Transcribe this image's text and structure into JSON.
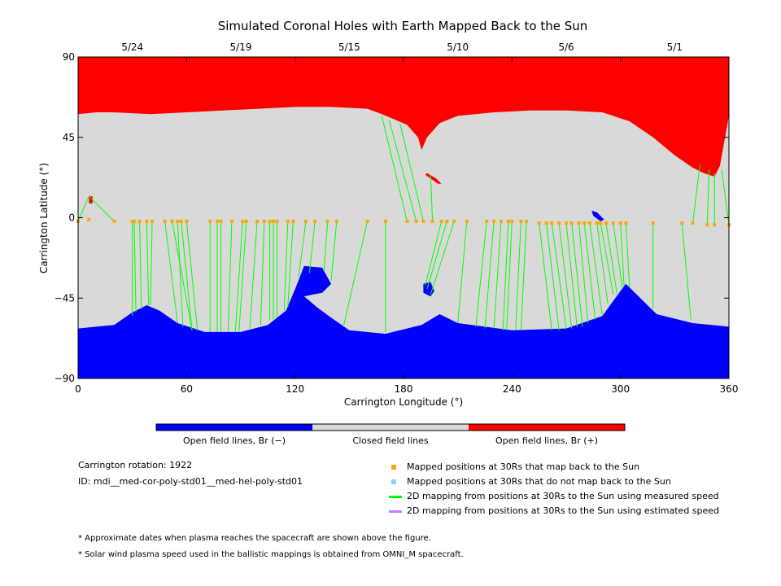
{
  "chart_data": {
    "type": "map",
    "title": "Simulated Coronal Holes with Earth Mapped Back to the Sun",
    "xlabel": "Carrington Longitude (°)",
    "ylabel": "Carrington Latitude (°)",
    "xlim": [
      0,
      360
    ],
    "ylim": [
      -90,
      90
    ],
    "x_ticks": [
      "0",
      "60",
      "120",
      "180",
      "240",
      "300",
      "360"
    ],
    "y_ticks": [
      "90",
      "45",
      "0",
      "-45",
      "-90"
    ],
    "top_dates": [
      {
        "label": "5/24",
        "lon": 30
      },
      {
        "label": "5/19",
        "lon": 90
      },
      {
        "label": "5/15",
        "lon": 150
      },
      {
        "label": "5/10",
        "lon": 210
      },
      {
        "label": "5/6",
        "lon": 270
      },
      {
        "label": "5/1",
        "lon": 330
      }
    ],
    "colors": {
      "open_negative": "#0000ff",
      "closed": "#d9d9d9",
      "open_positive": "#ff0000",
      "mapped_point": "#ffa500",
      "unmapped_point": "#87cefa",
      "measured_line": "#00ff00",
      "estimated_line": "#c080ff"
    },
    "north_boundary": [
      [
        0,
        58
      ],
      [
        10,
        59
      ],
      [
        20,
        59
      ],
      [
        40,
        58
      ],
      [
        60,
        59
      ],
      [
        80,
        60
      ],
      [
        100,
        61
      ],
      [
        120,
        62
      ],
      [
        140,
        62
      ],
      [
        160,
        61
      ],
      [
        168,
        58
      ],
      [
        175,
        55
      ],
      [
        182,
        52
      ],
      [
        188,
        45
      ],
      [
        190,
        38
      ],
      [
        193,
        45
      ],
      [
        200,
        53
      ],
      [
        210,
        57
      ],
      [
        230,
        59
      ],
      [
        250,
        60
      ],
      [
        270,
        60
      ],
      [
        290,
        59
      ],
      [
        305,
        54
      ],
      [
        318,
        45
      ],
      [
        330,
        35
      ],
      [
        340,
        28
      ],
      [
        346,
        25
      ],
      [
        352,
        23
      ],
      [
        355,
        29
      ],
      [
        360,
        57
      ]
    ],
    "south_boundary": [
      [
        0,
        -62
      ],
      [
        20,
        -60
      ],
      [
        30,
        -53
      ],
      [
        38,
        -49
      ],
      [
        45,
        -52
      ],
      [
        55,
        -59
      ],
      [
        70,
        -64
      ],
      [
        90,
        -64
      ],
      [
        105,
        -60
      ],
      [
        115,
        -52
      ],
      [
        120,
        -40
      ],
      [
        125,
        -27
      ],
      [
        135,
        -28
      ],
      [
        140,
        -37
      ],
      [
        135,
        -42
      ],
      [
        125,
        -44
      ],
      [
        132,
        -50
      ],
      [
        140,
        -56
      ],
      [
        150,
        -63
      ],
      [
        170,
        -65
      ],
      [
        190,
        -60
      ],
      [
        200,
        -54
      ],
      [
        210,
        -59
      ],
      [
        240,
        -63
      ],
      [
        270,
        -62
      ],
      [
        290,
        -55
      ],
      [
        300,
        -41
      ],
      [
        303,
        -37
      ],
      [
        310,
        -44
      ],
      [
        320,
        -54
      ],
      [
        340,
        -59
      ],
      [
        360,
        -61
      ]
    ],
    "small_regions": [
      {
        "polarity": "positive",
        "points": [
          [
            193,
            25
          ],
          [
            198,
            22
          ],
          [
            201,
            19
          ],
          [
            199,
            19
          ],
          [
            195,
            22
          ],
          [
            192,
            24
          ]
        ]
      },
      {
        "polarity": "positive",
        "points": [
          [
            6,
            12
          ],
          [
            8,
            12
          ],
          [
            8,
            8
          ],
          [
            6,
            8
          ]
        ]
      },
      {
        "polarity": "negative",
        "points": [
          [
            191,
            -37
          ],
          [
            195,
            -36
          ],
          [
            197,
            -41
          ],
          [
            195,
            -44
          ],
          [
            191,
            -42
          ]
        ]
      },
      {
        "polarity": "negative",
        "points": [
          [
            284,
            4
          ],
          [
            287,
            3
          ],
          [
            291,
            -1
          ],
          [
            289,
            -2
          ],
          [
            285,
            1
          ]
        ]
      }
    ],
    "mapped_points": [
      [
        0,
        -2
      ],
      [
        6,
        -1
      ],
      [
        20,
        -2
      ],
      [
        30,
        -2
      ],
      [
        31,
        -2
      ],
      [
        34,
        -2
      ],
      [
        38,
        -2
      ],
      [
        41,
        -2
      ],
      [
        48,
        -2
      ],
      [
        52,
        -2
      ],
      [
        55,
        -2
      ],
      [
        57,
        -2
      ],
      [
        60,
        -2
      ],
      [
        73,
        -2
      ],
      [
        77,
        -2
      ],
      [
        79,
        -2
      ],
      [
        85,
        -2
      ],
      [
        91,
        -2
      ],
      [
        93,
        -2
      ],
      [
        99,
        -2
      ],
      [
        103,
        -2
      ],
      [
        106,
        -2
      ],
      [
        108,
        -2
      ],
      [
        110,
        -2
      ],
      [
        116,
        -2
      ],
      [
        119,
        -2
      ],
      [
        126,
        -2
      ],
      [
        131,
        -2
      ],
      [
        138,
        -2
      ],
      [
        143,
        -2
      ],
      [
        160,
        -2
      ],
      [
        170,
        -2
      ],
      [
        182,
        -2
      ],
      [
        187,
        -2
      ],
      [
        191,
        -2
      ],
      [
        196,
        -2
      ],
      [
        201,
        -2
      ],
      [
        204,
        -2
      ],
      [
        208,
        -2
      ],
      [
        215,
        -2
      ],
      [
        226,
        -2
      ],
      [
        230,
        -2
      ],
      [
        234,
        -2
      ],
      [
        238,
        -2
      ],
      [
        240,
        -2
      ],
      [
        245,
        -2
      ],
      [
        248,
        -2
      ],
      [
        255,
        -3
      ],
      [
        259,
        -3
      ],
      [
        262,
        -3
      ],
      [
        266,
        -3
      ],
      [
        270,
        -3
      ],
      [
        273,
        -3
      ],
      [
        277,
        -3
      ],
      [
        280,
        -3
      ],
      [
        283,
        -3
      ],
      [
        287,
        -3
      ],
      [
        289,
        -3
      ],
      [
        292,
        -3
      ],
      [
        296,
        -3
      ],
      [
        300,
        -3
      ],
      [
        303,
        -3
      ],
      [
        318,
        -3
      ],
      [
        334,
        -3
      ],
      [
        340,
        -3
      ],
      [
        348,
        -4
      ],
      [
        352,
        -4
      ],
      [
        360,
        -4
      ]
    ],
    "measured_lines": [
      [
        [
          20,
          -2
        ],
        [
          6,
          12
        ],
        [
          0,
          -2
        ]
      ],
      [
        [
          30,
          -2
        ],
        [
          30,
          -55
        ]
      ],
      [
        [
          31,
          -2
        ],
        [
          32,
          -53
        ]
      ],
      [
        [
          34,
          -2
        ],
        [
          35,
          -51
        ]
      ],
      [
        [
          38,
          -2
        ],
        [
          39,
          -49
        ]
      ],
      [
        [
          41,
          -2
        ],
        [
          40,
          -49
        ]
      ],
      [
        [
          48,
          -2
        ],
        [
          55,
          -59
        ]
      ],
      [
        [
          52,
          -2
        ],
        [
          63,
          -63
        ]
      ],
      [
        [
          55,
          -2
        ],
        [
          58,
          -61
        ]
      ],
      [
        [
          57,
          -2
        ],
        [
          63,
          -63
        ]
      ],
      [
        [
          60,
          -2
        ],
        [
          66,
          -63
        ]
      ],
      [
        [
          73,
          -2
        ],
        [
          73,
          -64
        ]
      ],
      [
        [
          77,
          -2
        ],
        [
          77,
          -64
        ]
      ],
      [
        [
          79,
          -2
        ],
        [
          79,
          -64
        ]
      ],
      [
        [
          85,
          -2
        ],
        [
          83,
          -64
        ]
      ],
      [
        [
          91,
          -2
        ],
        [
          87,
          -64
        ]
      ],
      [
        [
          93,
          -2
        ],
        [
          89,
          -64
        ]
      ],
      [
        [
          99,
          -2
        ],
        [
          95,
          -62
        ]
      ],
      [
        [
          103,
          -2
        ],
        [
          101,
          -60
        ]
      ],
      [
        [
          106,
          -2
        ],
        [
          106,
          -57
        ]
      ],
      [
        [
          108,
          -2
        ],
        [
          108,
          -57
        ]
      ],
      [
        [
          110,
          -2
        ],
        [
          110,
          -56
        ]
      ],
      [
        [
          116,
          -2
        ],
        [
          114,
          -52
        ]
      ],
      [
        [
          119,
          -2
        ],
        [
          116,
          -50
        ]
      ],
      [
        [
          126,
          -2
        ],
        [
          122,
          -33
        ]
      ],
      [
        [
          131,
          -2
        ],
        [
          128,
          -31
        ]
      ],
      [
        [
          138,
          -2
        ],
        [
          136,
          -30
        ]
      ],
      [
        [
          143,
          -2
        ],
        [
          140,
          -35
        ]
      ],
      [
        [
          160,
          -2
        ],
        [
          147,
          -60
        ]
      ],
      [
        [
          170,
          -2
        ],
        [
          170,
          -64
        ]
      ],
      [
        [
          182,
          -2
        ],
        [
          168,
          57
        ]
      ],
      [
        [
          187,
          -2
        ],
        [
          172,
          55
        ]
      ],
      [
        [
          191,
          -2
        ],
        [
          178,
          53
        ]
      ],
      [
        [
          196,
          -2
        ],
        [
          195,
          24
        ]
      ],
      [
        [
          201,
          -2
        ],
        [
          192,
          -38
        ]
      ],
      [
        [
          204,
          -2
        ],
        [
          193,
          -40
        ]
      ],
      [
        [
          208,
          -2
        ],
        [
          195,
          -43
        ]
      ],
      [
        [
          215,
          -2
        ],
        [
          210,
          -59
        ]
      ],
      [
        [
          226,
          -2
        ],
        [
          220,
          -61
        ]
      ],
      [
        [
          230,
          -2
        ],
        [
          225,
          -62
        ]
      ],
      [
        [
          234,
          -2
        ],
        [
          230,
          -62
        ]
      ],
      [
        [
          238,
          -2
        ],
        [
          235,
          -63
        ]
      ],
      [
        [
          240,
          -2
        ],
        [
          237,
          -63
        ]
      ],
      [
        [
          245,
          -2
        ],
        [
          242,
          -63
        ]
      ],
      [
        [
          248,
          -2
        ],
        [
          245,
          -63
        ]
      ],
      [
        [
          255,
          -3
        ],
        [
          262,
          -63
        ]
      ],
      [
        [
          259,
          -3
        ],
        [
          266,
          -63
        ]
      ],
      [
        [
          262,
          -3
        ],
        [
          270,
          -62
        ]
      ],
      [
        [
          266,
          -3
        ],
        [
          273,
          -62
        ]
      ],
      [
        [
          270,
          -3
        ],
        [
          276,
          -61
        ]
      ],
      [
        [
          273,
          -3
        ],
        [
          279,
          -61
        ]
      ],
      [
        [
          277,
          -3
        ],
        [
          282,
          -59
        ]
      ],
      [
        [
          280,
          -3
        ],
        [
          286,
          -57
        ]
      ],
      [
        [
          283,
          -3
        ],
        [
          290,
          -55
        ]
      ],
      [
        [
          287,
          -3
        ],
        [
          293,
          -48
        ]
      ],
      [
        [
          289,
          -3
        ],
        [
          296,
          -43
        ]
      ],
      [
        [
          292,
          -3
        ],
        [
          298,
          -42
        ]
      ],
      [
        [
          296,
          -3
        ],
        [
          301,
          -39
        ]
      ],
      [
        [
          300,
          -3
        ],
        [
          302,
          -38
        ]
      ],
      [
        [
          303,
          -3
        ],
        [
          305,
          -39
        ]
      ],
      [
        [
          318,
          -3
        ],
        [
          318,
          -51
        ]
      ],
      [
        [
          334,
          -3
        ],
        [
          339,
          -57
        ]
      ],
      [
        [
          340,
          -3
        ],
        [
          344,
          30
        ]
      ],
      [
        [
          348,
          -4
        ],
        [
          349,
          27
        ]
      ],
      [
        [
          352,
          -4
        ],
        [
          352,
          25
        ]
      ],
      [
        [
          360,
          -4
        ],
        [
          356,
          27
        ]
      ]
    ],
    "legend_bar": [
      "Open field lines, Br (−)",
      "Closed field lines",
      "Open field lines, Br (+)"
    ]
  },
  "info": {
    "rotation": "Carrington rotation: 1922",
    "id": "ID: mdi__med-cor-poly-std01__med-hel-poly-std01"
  },
  "legend": {
    "mapped": "Mapped positions at 30Rs that map back to the Sun",
    "unmapped": "Mapped positions at 30Rs that do not map back to the Sun",
    "measured": "2D mapping from positions at 30Rs to the Sun using measured speed",
    "estimated": "2D mapping from positions at 30Rs to the Sun using estimated speed"
  },
  "notes": [
    "* Approximate dates when plasma reaches the spacecraft are shown above the figure.",
    "* Solar wind plasma speed used in the ballistic mappings is obtained from OMNI_M spacecraft."
  ]
}
